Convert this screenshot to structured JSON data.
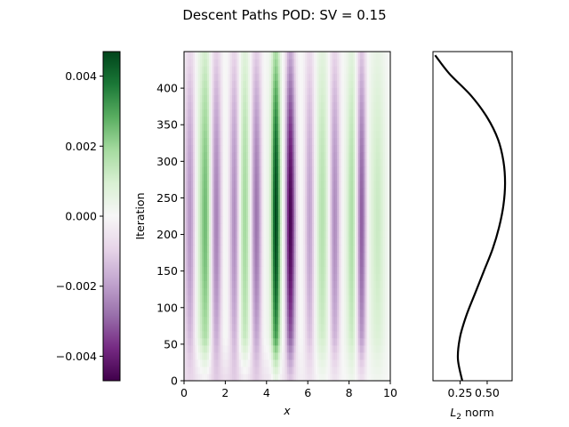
{
  "figure": {
    "title": "Descent Paths POD: SV = 0.15"
  },
  "chart_data": [
    {
      "type": "heatmap",
      "role": "colorbar",
      "colormap": "PRGn",
      "colormap_stops": [
        "#40004b",
        "#762a83",
        "#9970ab",
        "#c2a5cf",
        "#e7d4e8",
        "#f7f7f7",
        "#d9f0d3",
        "#a6dba0",
        "#5aae61",
        "#1b7837",
        "#00441b"
      ],
      "vlim": [
        -0.0047,
        0.0047
      ],
      "ticks": [
        -0.004,
        -0.002,
        0.0,
        0.002,
        0.004
      ],
      "tick_labels": [
        "−0.004",
        "−0.002",
        "0.000",
        "0.002",
        "0.004"
      ]
    },
    {
      "type": "heatmap",
      "role": "main",
      "xlabel": "x",
      "ylabel": "Iteration",
      "xlim": [
        0,
        10
      ],
      "ylim": [
        0,
        450
      ],
      "xticks": [
        0,
        2,
        4,
        6,
        8,
        10
      ],
      "yticks": [
        0,
        50,
        100,
        150,
        200,
        250,
        300,
        350,
        400
      ],
      "stripes": [
        {
          "x": 0.3,
          "width": 0.28,
          "amp": -0.0022
        },
        {
          "x": 0.65,
          "width": 0.24,
          "amp": 0.0006
        },
        {
          "x": 1.05,
          "width": 0.28,
          "amp": 0.0026
        },
        {
          "x": 1.55,
          "width": 0.28,
          "amp": -0.0026
        },
        {
          "x": 2.0,
          "width": 0.22,
          "amp": 0.0004
        },
        {
          "x": 2.45,
          "width": 0.26,
          "amp": -0.0024
        },
        {
          "x": 2.95,
          "width": 0.3,
          "amp": 0.002
        },
        {
          "x": 3.5,
          "width": 0.28,
          "amp": -0.0028
        },
        {
          "x": 3.9,
          "width": 0.2,
          "amp": 0.0004
        },
        {
          "x": 4.45,
          "width": 0.22,
          "amp": 0.0046
        },
        {
          "x": 4.9,
          "width": 0.12,
          "amp": 0.0006
        },
        {
          "x": 5.15,
          "width": 0.26,
          "amp": -0.0046
        },
        {
          "x": 5.7,
          "width": 0.22,
          "amp": 0.0002
        },
        {
          "x": 6.1,
          "width": 0.26,
          "amp": -0.002
        },
        {
          "x": 6.7,
          "width": 0.35,
          "amp": 0.0016
        },
        {
          "x": 7.3,
          "width": 0.26,
          "amp": -0.0024
        },
        {
          "x": 7.7,
          "width": 0.2,
          "amp": 0.0002
        },
        {
          "x": 8.15,
          "width": 0.26,
          "amp": 0.0018
        },
        {
          "x": 8.6,
          "width": 0.24,
          "amp": -0.0032
        },
        {
          "x": 9.0,
          "width": 0.24,
          "amp": 0.0002
        },
        {
          "x": 9.4,
          "width": 0.35,
          "amp": 0.0012
        }
      ],
      "bottom_band": {
        "y_max": 60,
        "amp": -0.0012
      }
    },
    {
      "type": "line",
      "role": "profile",
      "xlabel": "L2 norm",
      "xlabel_base": "L",
      "xlabel_sub": "2",
      "xlabel_rest": " norm",
      "xlim": [
        0.0,
        0.73
      ],
      "ylim": [
        0,
        450
      ],
      "xticks": [
        0.25,
        0.5
      ],
      "xtick_labels": [
        "0.25",
        "0.50"
      ],
      "line_color": "#000000",
      "x": [
        0.27,
        0.23,
        0.25,
        0.31,
        0.39,
        0.47,
        0.55,
        0.61,
        0.65,
        0.665,
        0.65,
        0.6,
        0.5,
        0.35,
        0.15,
        0.02
      ],
      "y": [
        0,
        30,
        60,
        90,
        120,
        150,
        180,
        210,
        240,
        270,
        300,
        330,
        360,
        390,
        420,
        445
      ]
    }
  ]
}
